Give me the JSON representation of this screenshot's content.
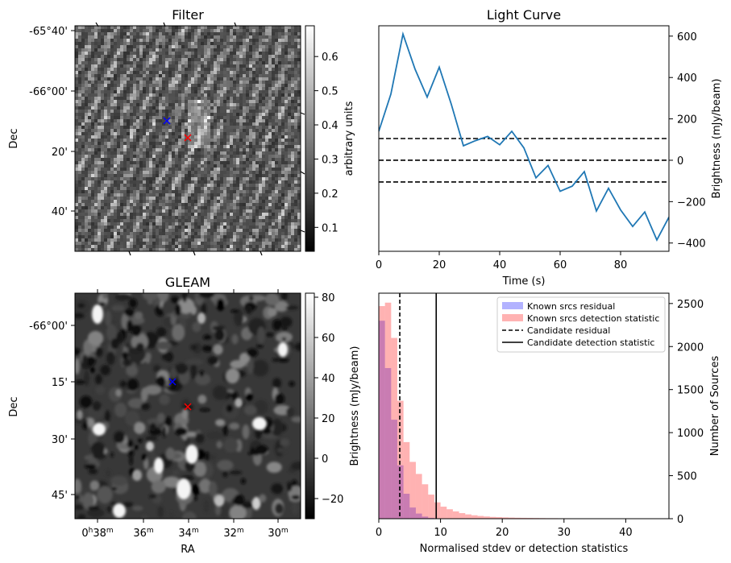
{
  "chart_data": [
    {
      "type": "heatmap",
      "title": "Filter",
      "ylabel": "Dec",
      "xlabel": "",
      "yticks": [
        "-65°40'",
        "-66°00'",
        "20'",
        "40'"
      ],
      "colorbar": {
        "label": "arbitrary units",
        "range": [
          0.03,
          0.69
        ],
        "ticks": [
          0.1,
          0.2,
          0.3,
          0.4,
          0.5,
          0.6
        ],
        "tick_labels": [
          "0.1",
          "0.2",
          "0.3",
          "0.4",
          "0.5",
          "0.6"
        ]
      },
      "markers": [
        {
          "symbol": "x",
          "color": "#0000ff"
        },
        {
          "symbol": "x",
          "color": "#ff0000"
        }
      ]
    },
    {
      "type": "line",
      "title": "Light Curve",
      "xlabel": "Time (s)",
      "ylabel": "Brightness (mJy/beam)",
      "xlim": [
        0,
        96
      ],
      "ylim": [
        -440,
        650
      ],
      "xticks": [
        0,
        20,
        40,
        60,
        80
      ],
      "yticks": [
        -400,
        -200,
        0,
        200,
        400,
        600
      ],
      "series": [
        {
          "name": "light curve",
          "color": "#1f77b4",
          "x": [
            0,
            4,
            8,
            12,
            16,
            20,
            24,
            28,
            32,
            36,
            40,
            44,
            48,
            52,
            56,
            60,
            64,
            68,
            72,
            76,
            80,
            84,
            88,
            92,
            96
          ],
          "y": [
            140,
            320,
            610,
            440,
            305,
            450,
            270,
            70,
            95,
            115,
            75,
            140,
            60,
            -85,
            -25,
            -150,
            -125,
            -55,
            -245,
            -135,
            -240,
            -320,
            -250,
            -385,
            -275
          ]
        }
      ],
      "hlines": [
        {
          "y": 105,
          "style": "dashed"
        },
        {
          "y": 0,
          "style": "dashed"
        },
        {
          "y": -105,
          "style": "dashed"
        }
      ]
    },
    {
      "type": "heatmap",
      "title": "GLEAM",
      "ylabel": "Dec",
      "xlabel": "RA",
      "yticks": [
        "-66°00'",
        "15'",
        "30'",
        "45'"
      ],
      "xticks": [
        "0h38m",
        "36m",
        "34m",
        "32m",
        "30m"
      ],
      "colorbar": {
        "label": "",
        "range": [
          -30,
          82
        ],
        "ticks": [
          -20,
          0,
          20,
          40,
          60,
          80
        ],
        "tick_labels": [
          "−20",
          "0",
          "20",
          "40",
          "60",
          "80"
        ]
      },
      "markers": [
        {
          "symbol": "x",
          "color": "#0000ff"
        },
        {
          "symbol": "x",
          "color": "#ff0000"
        }
      ]
    },
    {
      "type": "bar",
      "title": "",
      "xlabel": "Normalised stdev or detection statistics",
      "ylabel": "Brightness (mJy/beam)",
      "ylabel_right": "Number of Sources",
      "xlim": [
        0,
        47
      ],
      "ylim": [
        0,
        2620
      ],
      "xticks": [
        0,
        10,
        20,
        30,
        40
      ],
      "yticks": [
        0,
        500,
        1000,
        1500,
        2000,
        2500
      ],
      "bin_width": 1,
      "series": [
        {
          "name": "Known srcs residual",
          "color": "#0000ff",
          "values": [
            2300,
            1750,
            1150,
            620,
            290,
            130,
            60,
            25,
            10,
            5,
            2,
            1,
            0,
            0,
            0,
            0,
            0,
            0,
            0,
            0,
            0,
            0,
            0,
            0,
            0,
            0,
            0,
            0,
            0,
            0,
            0,
            0,
            0,
            0,
            0,
            0,
            0,
            0,
            0,
            0,
            0,
            0,
            0,
            0,
            0,
            0,
            0
          ]
        },
        {
          "name": "Known srcs detection statistic",
          "color": "#ff0000",
          "values": [
            2470,
            2510,
            2100,
            1370,
            890,
            660,
            520,
            400,
            280,
            190,
            140,
            110,
            85,
            65,
            50,
            40,
            32,
            26,
            21,
            18,
            15,
            13,
            11,
            10,
            9,
            8,
            7,
            6,
            6,
            5,
            5,
            4,
            4,
            3,
            3,
            3,
            2,
            2,
            2,
            2,
            2,
            1,
            1,
            1,
            1,
            1,
            1
          ]
        }
      ],
      "vlines": [
        {
          "name": "Candidate residual",
          "x": 3.4,
          "style": "dashed"
        },
        {
          "name": "Candidate detection statistic",
          "x": 9.3,
          "style": "solid"
        }
      ],
      "legend": [
        "Known srcs residual",
        "Known srcs detection statistic",
        "Candidate residual",
        "Candidate detection statistic"
      ],
      "legend_position": "top-right"
    }
  ]
}
